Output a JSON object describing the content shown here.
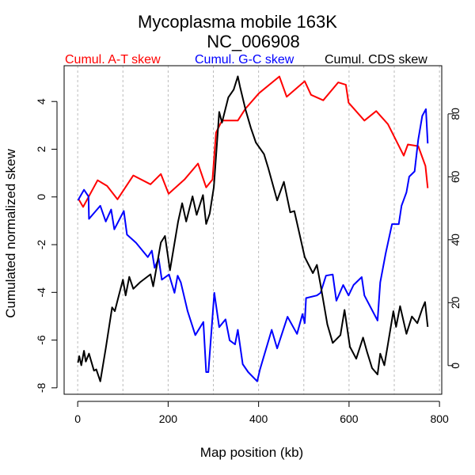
{
  "chart_data": {
    "type": "line",
    "title": "Mycoplasma mobile 163K",
    "subtitle": "NC_006908",
    "xlabel": "Map position (kb)",
    "ylabel": "Cumulated normalized skew",
    "xlim": [
      -30,
      805
    ],
    "ylim": [
      -8.27,
      5.5
    ],
    "y2lim": [
      -9.1,
      95.3
    ],
    "xticks": [
      0,
      200,
      400,
      600,
      800
    ],
    "yticks": [
      4,
      2,
      0,
      -2,
      -4,
      -6,
      -8
    ],
    "y2ticks": [
      80,
      60,
      40,
      20,
      0
    ],
    "grid_x": [
      0,
      100,
      200,
      300,
      400,
      500,
      600,
      700,
      800
    ],
    "legend_placement": "top",
    "series": [
      {
        "name": "Cumul. A-T skew",
        "color": "#ff0000",
        "axis": "left",
        "x": [
          2,
          12,
          44,
          65,
          88,
          123,
          161,
          184,
          201,
          236,
          266,
          284,
          298,
          306,
          319,
          354,
          371,
          401,
          446,
          462,
          502,
          516,
          543,
          576,
          593,
          599,
          634,
          660,
          686,
          721,
          730,
          753,
          769,
          774
        ],
        "y": [
          -0.09,
          -0.42,
          0.7,
          0.46,
          -0.1,
          0.9,
          0.53,
          0.96,
          0.13,
          0.73,
          1.4,
          0.4,
          0.73,
          2.7,
          3.2,
          3.2,
          3.7,
          4.35,
          5.05,
          4.2,
          4.85,
          4.28,
          4.05,
          4.8,
          4.7,
          3.95,
          3.2,
          3.6,
          3.05,
          1.73,
          2.2,
          2.13,
          1.3,
          0.37
        ]
      },
      {
        "name": "Cumul. G-C skew",
        "color": "#0000ff",
        "axis": "left",
        "x": [
          0.6,
          14,
          24,
          25,
          50,
          62,
          74,
          81,
          102,
          109,
          129,
          155,
          164,
          170,
          179,
          186,
          202,
          214,
          221,
          228,
          243,
          260,
          278,
          284,
          289,
          302,
          313,
          327,
          336,
          348,
          354,
          365,
          377,
          397,
          403,
          429,
          441,
          464,
          485,
          497,
          502,
          505,
          529,
          537,
          549,
          564,
          572,
          587,
          599,
          610,
          628,
          634,
          663,
          669,
          681,
          695,
          710,
          716,
          727,
          733,
          745,
          753,
          762,
          770,
          774
        ],
        "y": [
          -0.14,
          0.3,
          0.02,
          -0.92,
          -0.37,
          -1.03,
          -0.53,
          -1.36,
          -0.59,
          -1.58,
          -1.92,
          -2.52,
          -2.25,
          -2.97,
          -2.58,
          -3.47,
          -3.25,
          -4.02,
          -3.3,
          -3.58,
          -4.79,
          -5.79,
          -5.24,
          -7.34,
          -7.34,
          -4.02,
          -5.46,
          -5.13,
          -6.01,
          -6.18,
          -5.57,
          -7.01,
          -7.34,
          -7.73,
          -7.23,
          -5.57,
          -6.35,
          -5.02,
          -5.74,
          -4.91,
          -5.29,
          -4.24,
          -4.13,
          -4.02,
          -3.3,
          -3.25,
          -4.35,
          -3.69,
          -4.13,
          -3.69,
          -3.36,
          -4.13,
          -5.18,
          -3.58,
          -2.36,
          -1.14,
          -1.14,
          -0.37,
          0.19,
          0.85,
          1.07,
          2.4,
          3.4,
          3.68,
          2.24
        ]
      },
      {
        "name": "Cumul. CDS skew",
        "color": "#000000",
        "axis": "right",
        "x": [
          0.6,
          3.5,
          8,
          14,
          18,
          25,
          36,
          41,
          50,
          62,
          76,
          82,
          91,
          100,
          106,
          114,
          123,
          138,
          161,
          167,
          184,
          193,
          204,
          222,
          231,
          240,
          254,
          263,
          277,
          284,
          292,
          301,
          313,
          319,
          333,
          345,
          354,
          359,
          371,
          383,
          394,
          412,
          421,
          441,
          456,
          470,
          479,
          502,
          520,
          529,
          537,
          552,
          564,
          581,
          590,
          602,
          616,
          631,
          640,
          651,
          663,
          669,
          678,
          686,
          698,
          704,
          713,
          727,
          739,
          751,
          762,
          768,
          774
        ],
        "y": [
          0.9,
          3.0,
          0.1,
          4.7,
          1.3,
          3.8,
          -1.6,
          -1.2,
          -5.0,
          5.5,
          18.5,
          17.3,
          22.3,
          27.3,
          22.3,
          28.2,
          24.4,
          26.5,
          29.0,
          25.2,
          39.1,
          41.2,
          30.3,
          45.8,
          51.6,
          45.8,
          53.8,
          47.9,
          54.2,
          45.0,
          48.3,
          56.7,
          80.6,
          77.2,
          85.2,
          87.7,
          91.9,
          88.6,
          81.4,
          75.5,
          70.9,
          67.2,
          63.0,
          52.5,
          58.4,
          48.7,
          49.1,
          34.5,
          29.4,
          32.0,
          25.7,
          13.1,
          7.2,
          9.7,
          17.7,
          6.0,
          2.2,
          8.9,
          4.3,
          -0.8,
          -2.8,
          3.8,
          0.1,
          6.8,
          17.3,
          12.3,
          18.9,
          10.1,
          15.6,
          13.5,
          18.1,
          20.2,
          12.3
        ]
      }
    ]
  }
}
